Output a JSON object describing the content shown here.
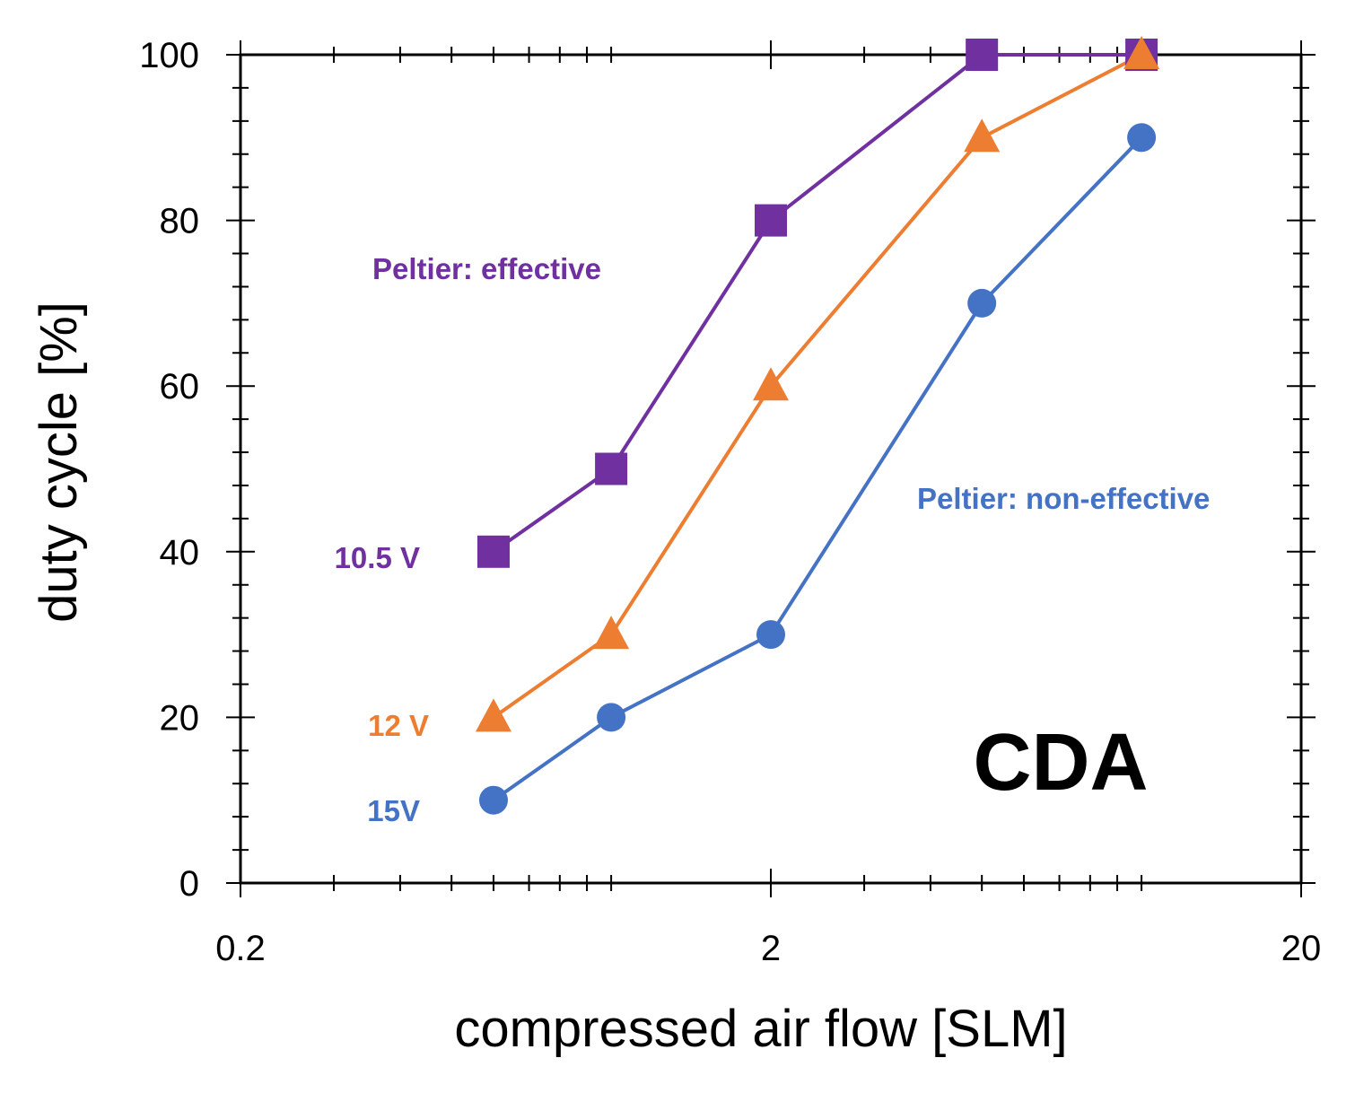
{
  "chart_data": {
    "type": "line",
    "title": "",
    "xlabel": "compressed air flow [SLM]",
    "ylabel": "duty cycle [%]",
    "xscale": "log",
    "xlim": [
      0.2,
      20
    ],
    "ylim": [
      0,
      100
    ],
    "xticks": [
      0.2,
      2,
      20
    ],
    "xtick_labels": [
      "0.2",
      "2",
      "20"
    ],
    "yticks": [
      0,
      20,
      40,
      60,
      80,
      100
    ],
    "ytick_labels": [
      "0",
      "20",
      "40",
      "60",
      "80",
      "100"
    ],
    "grid": false,
    "annotation": "CDA",
    "region_labels": [
      {
        "text": "Peltier: effective",
        "color": "#7030A0"
      },
      {
        "text": "Peltier: non-effective",
        "color": "#4472C4"
      }
    ],
    "series": [
      {
        "name": "10.5 V",
        "label": "10.5 V",
        "color": "#7030A0",
        "marker": "square",
        "x": [
          0.6,
          1.0,
          2.0,
          5.0,
          10.0
        ],
        "y": [
          40,
          50,
          80,
          100,
          100
        ]
      },
      {
        "name": "12 V",
        "label": "12 V",
        "color": "#ED7D31",
        "marker": "triangle",
        "x": [
          0.6,
          1.0,
          2.0,
          5.0,
          10.0
        ],
        "y": [
          20,
          30,
          60,
          90,
          100
        ]
      },
      {
        "name": "15V",
        "label": "15V",
        "color": "#4472C4",
        "marker": "circle",
        "x": [
          0.6,
          1.0,
          2.0,
          5.0,
          10.0
        ],
        "y": [
          10,
          20,
          30,
          70,
          90
        ]
      }
    ]
  }
}
